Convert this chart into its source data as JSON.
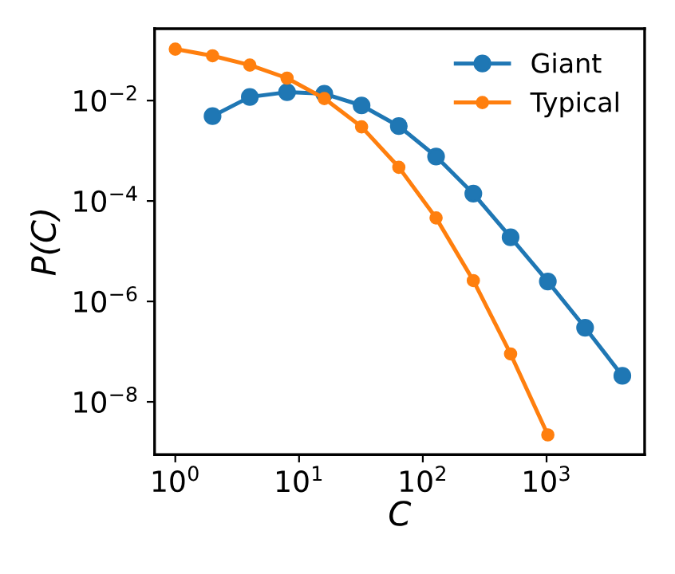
{
  "chart_data": {
    "type": "line",
    "xlabel": "C",
    "ylabel": "P(C)",
    "log": "xy",
    "marker": "circle",
    "legend": "top right",
    "grid": false,
    "xlim": [
      0.68,
      6200
    ],
    "ylim": [
      8.9e-10,
      0.27
    ],
    "xticks": [
      {
        "value": 1,
        "label": "10$^{0}$"
      },
      {
        "value": 10,
        "label": "10$^{1}$"
      },
      {
        "value": 100,
        "label": "10$^{2}$"
      },
      {
        "value": 1000,
        "label": "10$^{3}$"
      }
    ],
    "yticks": [
      {
        "value": 0.01,
        "label": "10$^{−2}$"
      },
      {
        "value": 0.0001,
        "label": "10$^{−4}$"
      },
      {
        "value": 1e-06,
        "label": "10$^{−6}$"
      },
      {
        "value": 1e-08,
        "label": "10$^{−8}$"
      }
    ],
    "series": [
      {
        "name": "Giant",
        "color": "#1f77b4",
        "x": [
          2,
          4,
          8,
          16,
          32,
          64,
          128,
          256,
          512,
          1024,
          2048,
          4096
        ],
        "values": [
          0.0049,
          0.0118,
          0.0147,
          0.0137,
          0.008,
          0.0031,
          0.00077,
          0.00014,
          1.9e-05,
          2.5e-06,
          3e-07,
          3.3e-08
        ]
      },
      {
        "name": "Typical",
        "color": "#ff7f0e",
        "x": [
          1,
          2,
          4,
          8,
          16,
          32,
          64,
          128,
          256,
          512,
          1024
        ],
        "values": [
          0.106,
          0.078,
          0.051,
          0.028,
          0.011,
          0.003,
          0.00047,
          4.6e-05,
          2.6e-06,
          9e-08,
          2.2e-09
        ]
      }
    ]
  }
}
